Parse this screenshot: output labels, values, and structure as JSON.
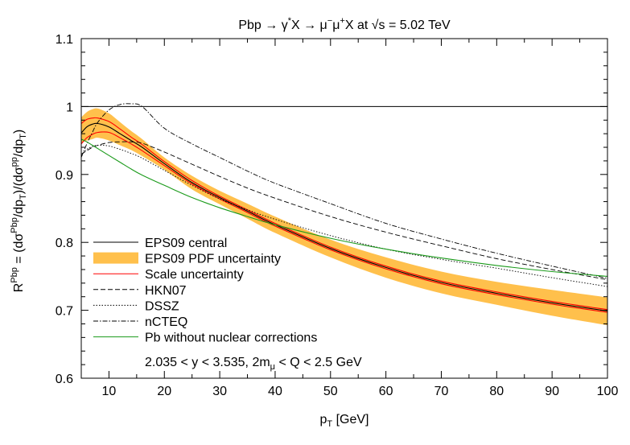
{
  "chart_data": {
    "type": "line",
    "title_parts": [
      "Pbp → γ",
      "*",
      "X → μ",
      "−",
      "μ",
      "+",
      "X at √s = 5.02 TeV"
    ],
    "xlabel_parts": [
      "p",
      "T",
      " [GeV]"
    ],
    "ylabel_parts": [
      "R",
      "Pbp",
      " = (dσ",
      "Pbp",
      "/dp",
      "T",
      ")/(dσ",
      "pp",
      "/dp",
      "T",
      ")"
    ],
    "xlim": [
      5,
      100
    ],
    "ylim": [
      0.6,
      1.1
    ],
    "xticks": [
      10,
      20,
      30,
      40,
      50,
      60,
      70,
      80,
      90,
      100
    ],
    "xtick_labels": [
      "10",
      "20",
      "30",
      "40",
      "50",
      "60",
      "70",
      "80",
      "90",
      "100"
    ],
    "yticks": [
      0.6,
      0.7,
      0.8,
      0.9,
      1.0,
      1.1
    ],
    "ytick_labels": [
      "0.6",
      "0.7",
      "0.8",
      "0.9",
      "1",
      "1.1"
    ],
    "reference_line": 1.0,
    "grid": false,
    "legend_position": "bottom-left",
    "annotation": "2.035 < y < 3.535,   2mμ < Q < 2.5 GeV",
    "annotation_parts": [
      "2.035 < y < 3.535,   2m",
      "μ",
      " < Q < 2.5 GeV"
    ],
    "x": [
      5,
      6,
      7,
      8,
      10,
      12,
      14,
      16,
      20,
      25,
      30,
      35,
      40,
      50,
      60,
      70,
      80,
      90,
      100
    ],
    "band": {
      "name": "EPS09 PDF uncertainty",
      "color": "#ffc04c",
      "upper": [
        0.984,
        0.992,
        0.996,
        0.997,
        0.99,
        0.977,
        0.964,
        0.952,
        0.925,
        0.898,
        0.876,
        0.857,
        0.838,
        0.804,
        0.778,
        0.757,
        0.742,
        0.73,
        0.719
      ],
      "lower": [
        0.947,
        0.95,
        0.952,
        0.954,
        0.95,
        0.943,
        0.936,
        0.927,
        0.907,
        0.878,
        0.856,
        0.835,
        0.814,
        0.778,
        0.748,
        0.725,
        0.708,
        0.692,
        0.678
      ]
    },
    "series": [
      {
        "name": "EPS09 central",
        "color": "#000000",
        "style": "solid",
        "values": [
          0.961,
          0.97,
          0.974,
          0.975,
          0.97,
          0.96,
          0.95,
          0.94,
          0.916,
          0.888,
          0.866,
          0.846,
          0.826,
          0.791,
          0.763,
          0.741,
          0.725,
          0.711,
          0.699
        ]
      },
      {
        "name": "Scale uncertainty",
        "color": "#ff0000",
        "style": "solid",
        "values": [
          0.975,
          0.981,
          0.983,
          0.983,
          0.978,
          0.967,
          0.955,
          0.944,
          0.919,
          0.891,
          0.868,
          0.848,
          0.828,
          0.793,
          0.765,
          0.743,
          0.727,
          0.713,
          0.701
        ]
      },
      {
        "name": "",
        "color": "#ff0000",
        "style": "solid",
        "values": [
          0.945,
          0.954,
          0.959,
          0.962,
          0.962,
          0.954,
          0.945,
          0.935,
          0.913,
          0.886,
          0.864,
          0.844,
          0.824,
          0.789,
          0.761,
          0.739,
          0.723,
          0.709,
          0.697
        ]
      },
      {
        "name": "HKN07",
        "color": "#000000",
        "style": "dashed",
        "values": [
          0.93,
          0.935,
          0.94,
          0.943,
          0.947,
          0.948,
          0.948,
          0.946,
          0.933,
          0.915,
          0.897,
          0.88,
          0.865,
          0.838,
          0.815,
          0.795,
          0.776,
          0.76,
          0.745
        ]
      },
      {
        "name": "DSSZ",
        "color": "#000000",
        "style": "dotted",
        "values": [
          0.928,
          0.937,
          0.941,
          0.943,
          0.942,
          0.937,
          0.931,
          0.924,
          0.906,
          0.884,
          0.864,
          0.848,
          0.834,
          0.81,
          0.79,
          0.775,
          0.762,
          0.748,
          0.735
        ]
      },
      {
        "name": "nCTEQ",
        "color": "#000000",
        "style": "dashdot",
        "values": [
          0.925,
          0.945,
          0.962,
          0.977,
          0.995,
          1.003,
          1.004,
          1.0,
          0.968,
          0.945,
          0.925,
          0.905,
          0.887,
          0.857,
          0.828,
          0.805,
          0.784,
          0.765,
          0.747
        ]
      },
      {
        "name": "Pb without nuclear corrections",
        "color": "#1a9a1a",
        "style": "solid",
        "values": [
          0.952,
          0.948,
          0.943,
          0.938,
          0.928,
          0.918,
          0.908,
          0.899,
          0.884,
          0.866,
          0.851,
          0.838,
          0.826,
          0.806,
          0.79,
          0.777,
          0.766,
          0.757,
          0.75
        ]
      }
    ],
    "legend": [
      {
        "label": "EPS09 central",
        "kind": "line",
        "color": "#000000",
        "style": "solid"
      },
      {
        "label": "EPS09 PDF uncertainty",
        "kind": "band",
        "color": "#ffc04c",
        "style": "solid"
      },
      {
        "label": "Scale uncertainty",
        "kind": "line",
        "color": "#ff0000",
        "style": "solid"
      },
      {
        "label": "HKN07",
        "kind": "line",
        "color": "#000000",
        "style": "dashed"
      },
      {
        "label": "DSSZ",
        "kind": "line",
        "color": "#000000",
        "style": "dotted"
      },
      {
        "label": "nCTEQ",
        "kind": "line",
        "color": "#000000",
        "style": "dashdot"
      },
      {
        "label": "Pb without nuclear corrections",
        "kind": "line",
        "color": "#1a9a1a",
        "style": "solid"
      }
    ]
  }
}
